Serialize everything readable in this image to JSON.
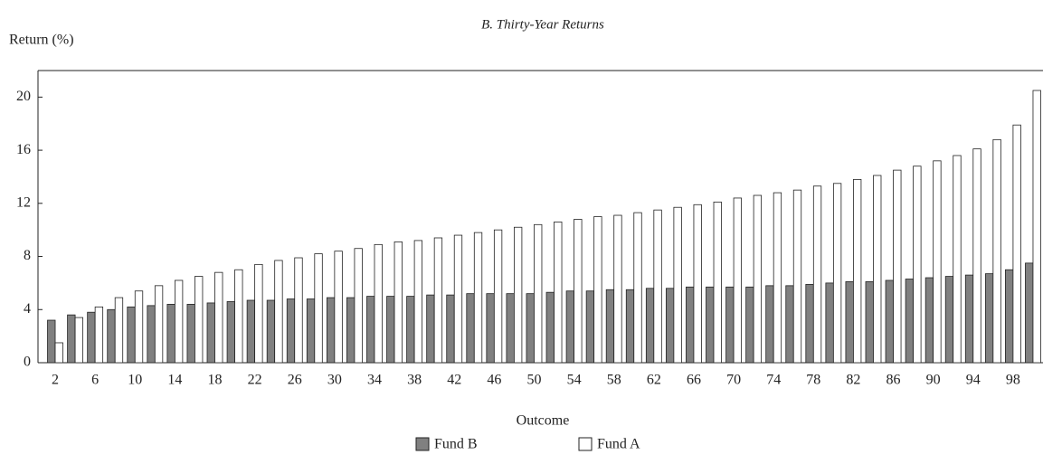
{
  "chart_data": {
    "type": "bar",
    "title": "B. Thirty-Year Returns",
    "y_label": "Return (%)",
    "x_label": "Outcome",
    "categories": [
      2,
      null,
      6,
      null,
      10,
      null,
      14,
      null,
      18,
      null,
      22,
      null,
      26,
      null,
      30,
      null,
      34,
      null,
      38,
      null,
      42,
      null,
      46,
      null,
      50,
      null,
      54,
      null,
      58,
      null,
      62,
      null,
      66,
      null,
      70,
      null,
      74,
      null,
      78,
      null,
      82,
      null,
      86,
      null,
      90,
      null,
      94,
      null,
      98,
      null
    ],
    "series": [
      {
        "name": "Fund B",
        "color": "#808080",
        "values": [
          3.2,
          3.6,
          3.8,
          4.0,
          4.2,
          4.3,
          4.4,
          4.4,
          4.5,
          4.6,
          4.7,
          4.7,
          4.8,
          4.8,
          4.9,
          4.9,
          5.0,
          5.0,
          5.0,
          5.1,
          5.1,
          5.2,
          5.2,
          5.2,
          5.2,
          5.3,
          5.4,
          5.4,
          5.5,
          5.5,
          5.6,
          5.6,
          5.7,
          5.7,
          5.7,
          5.7,
          5.8,
          5.8,
          5.9,
          6.0,
          6.1,
          6.1,
          6.2,
          6.3,
          6.4,
          6.5,
          6.6,
          6.7,
          7.0,
          7.5
        ]
      },
      {
        "name": "Fund A",
        "color": "#ffffff",
        "values": [
          1.5,
          3.4,
          4.2,
          4.9,
          5.4,
          5.8,
          6.2,
          6.5,
          6.8,
          7.0,
          7.4,
          7.7,
          7.9,
          8.2,
          8.4,
          8.6,
          8.9,
          9.1,
          9.2,
          9.4,
          9.6,
          9.8,
          10.0,
          10.2,
          10.4,
          10.6,
          10.8,
          11.0,
          11.1,
          11.3,
          11.5,
          11.7,
          11.9,
          12.1,
          12.4,
          12.6,
          12.8,
          13.0,
          13.3,
          13.5,
          13.8,
          14.1,
          14.5,
          14.8,
          15.2,
          15.6,
          16.1,
          16.8,
          17.9,
          20.5
        ]
      }
    ],
    "ylim": [
      0,
      22
    ],
    "yticks": [
      0,
      4,
      8,
      12,
      16,
      20
    ],
    "legend": "bottom"
  }
}
